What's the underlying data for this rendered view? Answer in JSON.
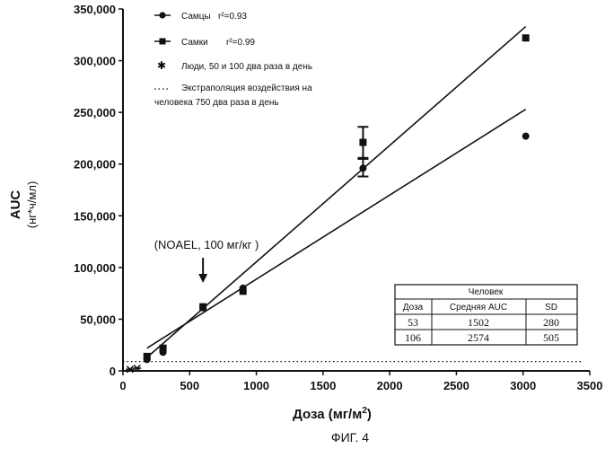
{
  "chart_data": {
    "type": "scatter",
    "xlabel": "Доза (мг/м",
    "xlabel_sup": "2",
    "xlabel_tail": ")",
    "ylabel": "AUC",
    "ylabel_unit": "(нг*ч/мл)",
    "xlim": [
      0,
      3500
    ],
    "ylim": [
      0,
      350000
    ],
    "x_ticks": [
      0,
      500,
      1000,
      1500,
      2000,
      2500,
      3000,
      3500
    ],
    "y_ticks": [
      0,
      50000,
      100000,
      150000,
      200000,
      250000,
      300000,
      350000
    ],
    "y_tick_labels": [
      "0",
      "50,000",
      "100,000",
      "150,000",
      "200,000",
      "250,000",
      "300,000",
      "350,000"
    ],
    "series": [
      {
        "name": "Самцы",
        "r2_label": "r²=0.93",
        "marker": "circle",
        "points": [
          {
            "x": 180,
            "y": 11000
          },
          {
            "x": 300,
            "y": 18000
          },
          {
            "x": 600,
            "y": 61000
          },
          {
            "x": 900,
            "y": 80000
          },
          {
            "x": 1800,
            "y": 196000
          },
          {
            "x": 3020,
            "y": 227000
          }
        ],
        "errors": [
          {
            "x": 1800,
            "low": 188000,
            "high": 206000
          }
        ],
        "fit": {
          "x0": 180,
          "y0": 22000,
          "x1": 3020,
          "y1": 253000
        }
      },
      {
        "name": "Самки",
        "r2_label": "r²=0.99",
        "marker": "square",
        "points": [
          {
            "x": 180,
            "y": 14000
          },
          {
            "x": 300,
            "y": 22000
          },
          {
            "x": 600,
            "y": 62000
          },
          {
            "x": 900,
            "y": 77000
          },
          {
            "x": 1800,
            "y": 221000
          },
          {
            "x": 3020,
            "y": 322000
          }
        ],
        "errors": [
          {
            "x": 1800,
            "low": 205000,
            "high": 236000
          }
        ],
        "fit": {
          "x0": 180,
          "y0": 13000,
          "x1": 3020,
          "y1": 333000
        }
      },
      {
        "name": "Люди, 50 и 100 два раза в день",
        "marker": "star",
        "points": [
          {
            "x": 53,
            "y": 1502
          },
          {
            "x": 106,
            "y": 2574
          }
        ]
      },
      {
        "name": "Экстраполяция воздействия на человека 750 два раза в день",
        "name_line1": "Экстраполяция воздействия на",
        "name_line2": "человека 750 два раза в день",
        "marker": "dotted-line",
        "y_constant": 9000
      }
    ],
    "annotation": {
      "text": "(NOAEL, 100  мг/кг )",
      "x": 600
    },
    "inset_table": {
      "title": "Человек",
      "headers": [
        "Доза",
        "Средняя AUC",
        "SD"
      ],
      "rows": [
        [
          "53",
          "1502",
          "280"
        ],
        [
          "106",
          "2574",
          "505"
        ]
      ]
    },
    "figure_label": "ФИГ. 4",
    "grid": false,
    "legend_position": "top-left"
  }
}
